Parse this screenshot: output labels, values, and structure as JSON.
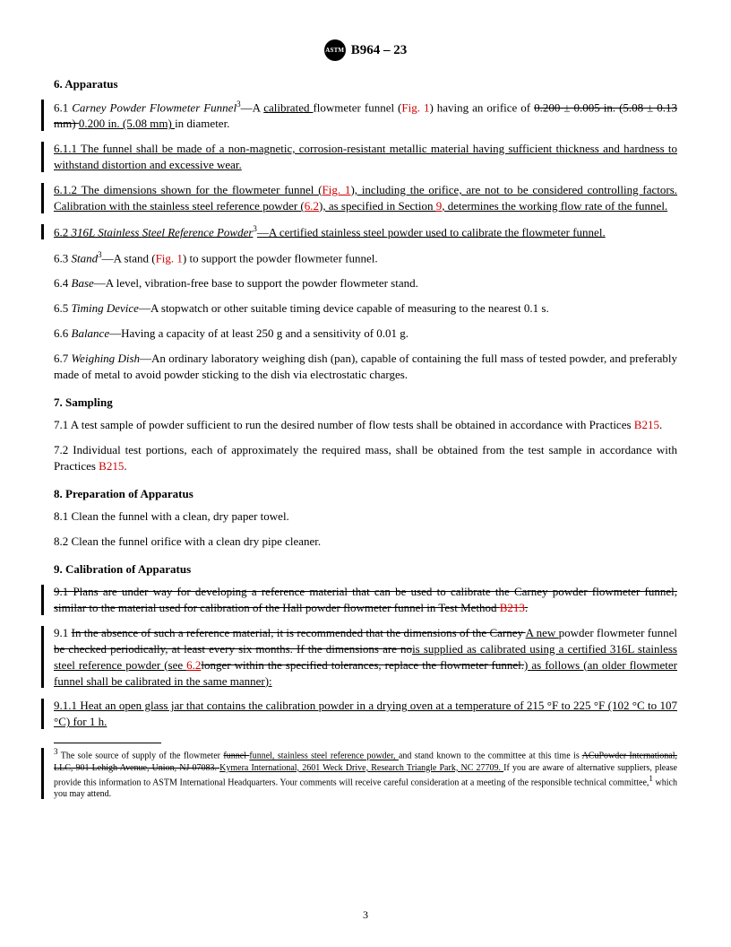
{
  "header": {
    "logo_text": "ASTM",
    "designation": "B964 – 23"
  },
  "sections": {
    "s6_title": "6.  Apparatus",
    "s7_title": "7.  Sampling",
    "s8_title": "8.  Preparation of Apparatus",
    "s9_title": "9.  Calibration of Apparatus"
  },
  "p": {
    "p61a": "6.1 ",
    "p61_name": "Carney Powder Flowmeter Funnel",
    "p61_sup": "3",
    "p61b": "—A ",
    "p61_cal": "calibrated ",
    "p61c": "flowmeter funnel (",
    "p61_fig": "Fig. 1",
    "p61d": ") having an orifice of ",
    "p61_del1": "0.200 ± 0.005 in. (5.08 ± 0.13 mm) ",
    "p61_ins": "0.200 in. (5.08 mm) ",
    "p61e": "in diameter.",
    "p611": "6.1.1 The funnel shall be made of a non-magnetic, corrosion-resistant metallic material having sufficient thickness and hardness to withstand distortion and excessive wear.",
    "p612a": "6.1.2 The dimensions shown for the flowmeter funnel (",
    "p612_fig": "Fig. 1",
    "p612b": "), including the orifice, are not to be considered controlling factors. Calibration with the stainless steel reference powder (",
    "p612_ref62": "6.2",
    "p612c": "), as specified in Section ",
    "p612_ref9": "9",
    "p612d": ", determines the working flow rate of the funnel.",
    "p62a": "6.2 ",
    "p62_name": "316L Stainless Steel Reference Powder",
    "p62_sup": "3",
    "p62b": "—A certified stainless steel powder used to calibrate the flowmeter funnel.",
    "p63a": "6.3 ",
    "p63_name": "Stand",
    "p63_sup": "3",
    "p63b": "—A stand (",
    "p63_fig": "Fig. 1",
    "p63c": ") to support the powder flowmeter funnel.",
    "p64a": "6.4 ",
    "p64_name": "Base",
    "p64b": "—A level, vibration-free base to support the powder flowmeter stand.",
    "p65a": "6.5 ",
    "p65_name": "Timing Device",
    "p65b": "—A stopwatch or other suitable timing device capable of measuring to the nearest 0.1 s.",
    "p66a": "6.6 ",
    "p66_name": "Balance",
    "p66b": "—Having a capacity of at least 250 g and a sensitivity of 0.01 g.",
    "p67a": "6.7 ",
    "p67_name": "Weighing Dish",
    "p67b": "—An ordinary laboratory weighing dish (pan), capable of containing the full mass of tested powder, and preferably made of metal to avoid powder sticking to the dish via electrostatic charges.",
    "p71a": "7.1  A test sample of powder sufficient to run the desired number of flow tests shall be obtained in accordance with Practices ",
    "p71_ref": "B215",
    "p71b": ".",
    "p72a": "7.2  Individual test portions, each of approximately the required mass, shall be obtained from the test sample in accordance with Practices ",
    "p72_ref": "B215",
    "p72b": ".",
    "p81": "8.1  Clean the funnel with a clean, dry paper towel.",
    "p82": "8.2  Clean the funnel orifice with a clean dry pipe cleaner.",
    "p91d_a": "9.1  Plans are under way for developing a reference material that can be used to calibrate the Carney powder flowmeter funnel, similar to the material used for calibration of the Hall powder flowmeter funnel in Test Method ",
    "p91d_ref": "B213",
    "p91d_b": ".",
    "p91a": "9.1  ",
    "p91_del1": "In the absence of such a reference material, it is recommended that the dimensions of the Carney ",
    "p91_ins1": "A new ",
    "p91b": "powder flowmeter funnel ",
    "p91_del2": "be checked periodically, at least every six months. If the dimensions are no",
    "p91_ins2": "is supplied as calibrated using a certified 316L stainless steel reference powder (see ",
    "p91_ref62": "6.2",
    "p91_del3": "longer within the specified tolerances, replace the flowmeter funnel.",
    "p91_ins3": ") as follows (an older flowmeter funnel shall be calibrated in the same manner):",
    "p911": "9.1.1  Heat an open glass jar that contains the calibration powder in a drying oven at a temperature of 215 °F to 225 °F (102 °C to 107 °C) for 1 h."
  },
  "footnote": {
    "sup": "3",
    "a": " The sole source of supply of the flowmeter ",
    "del1": "funnel ",
    "ins1": "funnel, stainless steel reference powder, ",
    "b": "and stand known to the committee at this time is ",
    "del2": "ACuPowder International, LLC, 901 Lehigh Avenue, Union, NJ 07083. ",
    "ins2": "Kymera International, 2601 Weck Drive, Research Triangle Park, NC 27709. ",
    "c": "If you are aware of alternative suppliers, please provide this information to ASTM International Headquarters. Your comments will receive careful consideration at a meeting of the responsible technical committee,",
    "sup2": "1",
    "d": " which you may attend."
  },
  "pagenum": "3",
  "colors": {
    "text": "#000000",
    "ref": "#cc0000",
    "bg": "#ffffff"
  }
}
